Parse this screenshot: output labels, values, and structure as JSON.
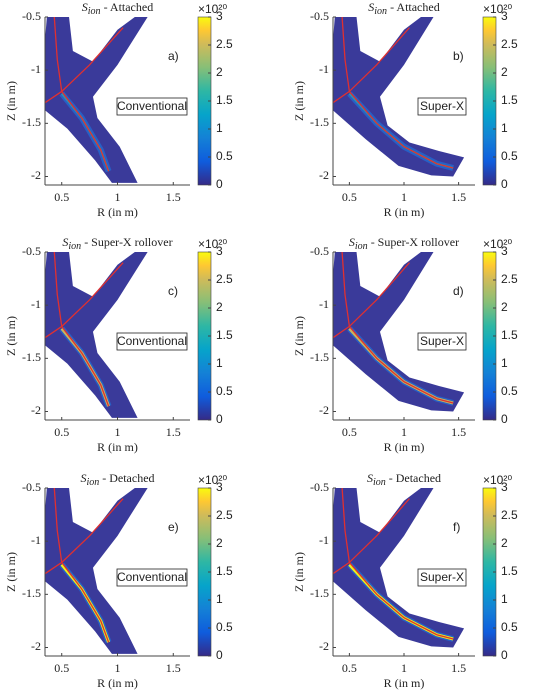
{
  "chart_data": [
    {
      "type": "heatmap",
      "title_symbol": "S",
      "title_subscript": "ion",
      "title": " - Attached",
      "panel_label": "a)",
      "annotation": "Conventional",
      "xlabel": "R (in m)",
      "ylabel": "Z (in m)",
      "xlim": [
        0.35,
        1.65
      ],
      "ylim": [
        -2.08,
        -0.5
      ],
      "xticks": [
        0.5,
        1,
        1.5
      ],
      "yticks": [
        -0.5,
        -1,
        -1.5,
        -2
      ],
      "clim": [
        0,
        3
      ],
      "cticks": [
        0,
        0.5,
        1,
        1.5,
        2,
        2.5,
        3
      ],
      "colorbar_label": "×10²⁰"
    },
    {
      "type": "heatmap",
      "title_symbol": "S",
      "title_subscript": "ion",
      "title": " - Attached",
      "panel_label": "b)",
      "annotation": "Super-X",
      "xlabel": "R (in m)",
      "ylabel": "Z (in m)",
      "xlim": [
        0.35,
        1.65
      ],
      "ylim": [
        -2.08,
        -0.5
      ],
      "xticks": [
        0.5,
        1,
        1.5
      ],
      "yticks": [
        -0.5,
        -1,
        -1.5,
        -2
      ],
      "clim": [
        0,
        3
      ],
      "cticks": [
        0,
        0.5,
        1,
        1.5,
        2,
        2.5,
        3
      ],
      "colorbar_label": "×10²⁰"
    },
    {
      "type": "heatmap",
      "title_symbol": "S",
      "title_subscript": "ion",
      "title": " - Super-X rollover",
      "panel_label": "c)",
      "annotation": "Conventional",
      "xlabel": "R (in m)",
      "ylabel": "Z (in m)",
      "xlim": [
        0.35,
        1.65
      ],
      "ylim": [
        -2.08,
        -0.5
      ],
      "xticks": [
        0.5,
        1,
        1.5
      ],
      "yticks": [
        -0.5,
        -1,
        -1.5,
        -2
      ],
      "clim": [
        0,
        3
      ],
      "cticks": [
        0,
        0.5,
        1,
        1.5,
        2,
        2.5,
        3
      ],
      "colorbar_label": "×10²⁰"
    },
    {
      "type": "heatmap",
      "title_symbol": "S",
      "title_subscript": "ion",
      "title": " - Super-X rollover",
      "panel_label": "d)",
      "annotation": "Super-X",
      "xlabel": "R (in m)",
      "ylabel": "Z (in m)",
      "xlim": [
        0.35,
        1.65
      ],
      "ylim": [
        -2.08,
        -0.5
      ],
      "xticks": [
        0.5,
        1,
        1.5
      ],
      "yticks": [
        -0.5,
        -1,
        -1.5,
        -2
      ],
      "clim": [
        0,
        3
      ],
      "cticks": [
        0,
        0.5,
        1,
        1.5,
        2,
        2.5,
        3
      ],
      "colorbar_label": "×10²⁰"
    },
    {
      "type": "heatmap",
      "title_symbol": "S",
      "title_subscript": "ion",
      "title": " - Detached",
      "panel_label": "e)",
      "annotation": "Conventional",
      "xlabel": "R (in m)",
      "ylabel": "Z (in m)",
      "xlim": [
        0.35,
        1.65
      ],
      "ylim": [
        -2.08,
        -0.5
      ],
      "xticks": [
        0.5,
        1,
        1.5
      ],
      "yticks": [
        -0.5,
        -1,
        -1.5,
        -2
      ],
      "clim": [
        0,
        3
      ],
      "cticks": [
        0,
        0.5,
        1,
        1.5,
        2,
        2.5,
        3
      ],
      "colorbar_label": "×10²⁰"
    },
    {
      "type": "heatmap",
      "title_symbol": "S",
      "title_subscript": "ion",
      "title": " - Detached",
      "panel_label": "f)",
      "annotation": "Super-X",
      "xlabel": "R (in m)",
      "ylabel": "Z (in m)",
      "xlim": [
        0.35,
        1.65
      ],
      "ylim": [
        -2.08,
        -0.5
      ],
      "xticks": [
        0.5,
        1,
        1.5
      ],
      "yticks": [
        -0.5,
        -1,
        -1.5,
        -2
      ],
      "clim": [
        0,
        3
      ],
      "cticks": [
        0,
        0.5,
        1,
        1.5,
        2,
        2.5,
        3
      ],
      "colorbar_label": "×10²⁰"
    }
  ]
}
